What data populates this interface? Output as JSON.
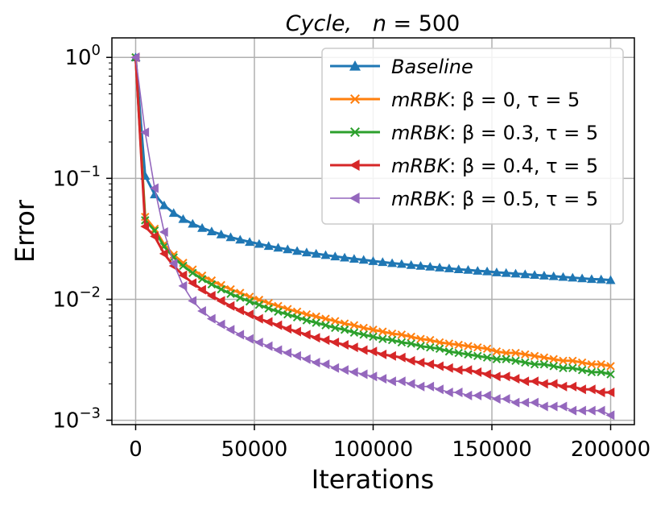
{
  "chart_data": {
    "type": "line",
    "title": "Cycle,    n = 500",
    "xlabel": "Iterations",
    "ylabel": "Error",
    "xlim": [
      -10000,
      210000
    ],
    "ylim": [
      0.00092,
      1.45
    ],
    "yscale": "log",
    "grid": true,
    "legend_position": "top-right",
    "x_ticks": [
      0,
      50000,
      100000,
      150000,
      200000
    ],
    "x_tick_labels": [
      "0",
      "50000",
      "100000",
      "150000",
      "200000"
    ],
    "y_ticks": [
      1,
      0.1,
      0.01,
      0.001
    ],
    "y_tick_labels": [
      {
        "base": "10",
        "exp": "0"
      },
      {
        "base": "10",
        "exp": "−1"
      },
      {
        "base": "10",
        "exp": "−2"
      },
      {
        "base": "10",
        "exp": "−3"
      }
    ],
    "marker_x_start": 0,
    "marker_x_step": 4000,
    "series": [
      {
        "name": "Baseline",
        "legend_parts": [
          "Baseline"
        ],
        "color": "#1f77b4",
        "marker": "triangle-up",
        "line_width": 3,
        "values": [
          1.0,
          0.105,
          0.0736,
          0.0598,
          0.0517,
          0.0461,
          0.0421,
          0.0389,
          0.0364,
          0.0344,
          0.0326,
          0.0311,
          0.0298,
          0.0287,
          0.0276,
          0.0267,
          0.0259,
          0.0251,
          0.0244,
          0.0238,
          0.0232,
          0.0226,
          0.0221,
          0.0216,
          0.0212,
          0.0207,
          0.0203,
          0.0199,
          0.0196,
          0.0192,
          0.0189,
          0.0186,
          0.0183,
          0.018,
          0.0177,
          0.0175,
          0.0172,
          0.017,
          0.0167,
          0.0165,
          0.0163,
          0.0161,
          0.0159,
          0.0157,
          0.0155,
          0.0153,
          0.0151,
          0.0149,
          0.0147,
          0.0146,
          0.0144
        ]
      },
      {
        "name": "mRBK: β = 0, τ = 5",
        "legend_parts": [
          "mRBK",
          ": β = 0, τ = 5"
        ],
        "color": "#ff7f0e",
        "marker": "x",
        "line_width": 3,
        "values": [
          1.0,
          0.048,
          0.0383,
          0.0285,
          0.0233,
          0.02,
          0.0176,
          0.0157,
          0.0143,
          0.0131,
          0.0121,
          0.0113,
          0.0105,
          0.0099,
          0.0093,
          0.0088,
          0.0083,
          0.0079,
          0.0075,
          0.0072,
          0.0069,
          0.0066,
          0.0063,
          0.0061,
          0.0058,
          0.0056,
          0.0054,
          0.0052,
          0.0051,
          0.0049,
          0.0047,
          0.0046,
          0.0044,
          0.0043,
          0.0042,
          0.0041,
          0.004,
          0.0039,
          0.0037,
          0.0036,
          0.0036,
          0.0035,
          0.0034,
          0.0033,
          0.0032,
          0.0031,
          0.0031,
          0.003,
          0.0029,
          0.0029,
          0.0028
        ]
      },
      {
        "name": "mRBK: β = 0.3, τ = 5",
        "legend_parts": [
          "mRBK",
          ": β = 0.3, τ = 5"
        ],
        "color": "#2ca02c",
        "marker": "x",
        "line_width": 3,
        "values": [
          1.0,
          0.045,
          0.037,
          0.0273,
          0.0222,
          0.0189,
          0.0165,
          0.0147,
          0.0133,
          0.0121,
          0.0111,
          0.0103,
          0.0096,
          0.009,
          0.0084,
          0.0079,
          0.0075,
          0.0071,
          0.0067,
          0.0064,
          0.0061,
          0.0058,
          0.0056,
          0.0053,
          0.0051,
          0.0049,
          0.0047,
          0.0046,
          0.0044,
          0.0043,
          0.0041,
          0.004,
          0.0039,
          0.0037,
          0.0036,
          0.0035,
          0.0034,
          0.0033,
          0.0032,
          0.0032,
          0.0031,
          0.003,
          0.0029,
          0.0029,
          0.0028,
          0.0027,
          0.0027,
          0.0026,
          0.0025,
          0.0025,
          0.0024
        ]
      },
      {
        "name": "mRBK: β = 0.4, τ = 5",
        "legend_parts": [
          "mRBK",
          ": β = 0.4, τ = 5"
        ],
        "color": "#d62728",
        "marker": "triangle-left",
        "line_width": 3,
        "values": [
          1.0,
          0.04,
          0.0331,
          0.0238,
          0.0189,
          0.0158,
          0.0136,
          0.012,
          0.0107,
          0.0097,
          0.0088,
          0.0081,
          0.0075,
          0.0069,
          0.0065,
          0.0061,
          0.0057,
          0.0054,
          0.0051,
          0.0048,
          0.0046,
          0.0044,
          0.0042,
          0.004,
          0.0038,
          0.0037,
          0.0035,
          0.0034,
          0.0033,
          0.0031,
          0.003,
          0.0029,
          0.0028,
          0.0027,
          0.0026,
          0.0026,
          0.0025,
          0.0024,
          0.0023,
          0.0023,
          0.0022,
          0.0021,
          0.0021,
          0.002,
          0.002,
          0.0019,
          0.0019,
          0.0018,
          0.0018,
          0.0017,
          0.0017
        ]
      },
      {
        "name": "mRBK: β = 0.5, τ = 5",
        "legend_parts": [
          "mRBK",
          ": β = 0.5, τ = 5"
        ],
        "color": "#9467bd",
        "marker": "triangle-left",
        "line_width": 1.6,
        "values": [
          1.0,
          0.24,
          0.083,
          0.036,
          0.0198,
          0.0129,
          0.0097,
          0.008,
          0.0069,
          0.0062,
          0.0056,
          0.0051,
          0.0047,
          0.0044,
          0.0041,
          0.0038,
          0.0036,
          0.0034,
          0.0032,
          0.003,
          0.0029,
          0.0027,
          0.0026,
          0.0025,
          0.0024,
          0.0023,
          0.0022,
          0.0021,
          0.0021,
          0.002,
          0.0019,
          0.0019,
          0.0018,
          0.0017,
          0.0017,
          0.0016,
          0.0016,
          0.0016,
          0.0015,
          0.0015,
          0.0014,
          0.0014,
          0.0014,
          0.0013,
          0.0013,
          0.0013,
          0.0012,
          0.0012,
          0.0012,
          0.0012,
          0.0011
        ]
      }
    ]
  }
}
